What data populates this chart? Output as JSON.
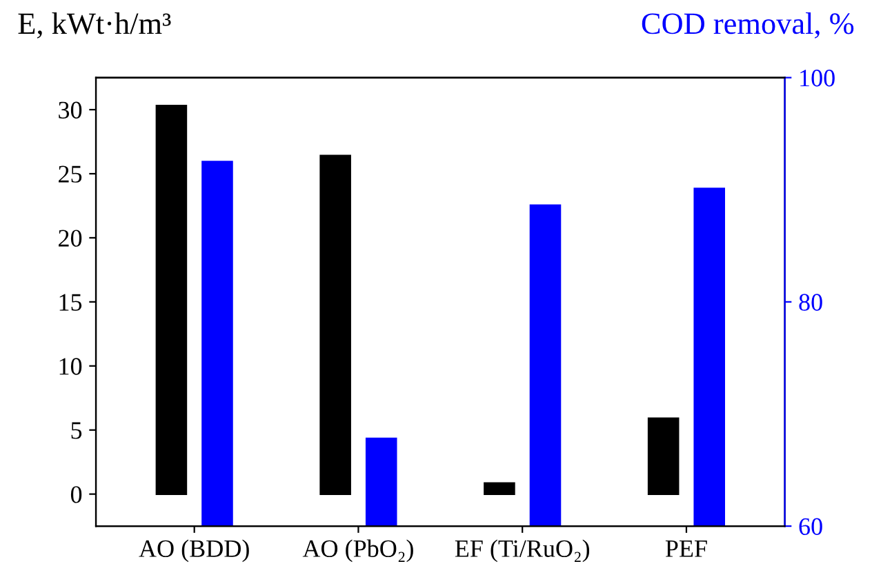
{
  "chart_data": {
    "type": "bar",
    "ylabel": "E, kWt·h/m³",
    "y2label": "COD removal, %",
    "categories": [
      "AO (BDD)",
      "AO (PbO₂)",
      "EF (Ti/RuO₂)",
      "PEF"
    ],
    "series": [
      {
        "color": "#000000",
        "values": [
          30.3,
          26.4,
          0.85,
          5.9
        ]
      },
      {
        "color": "#0000ff",
        "axis": "y2",
        "values": [
          92.5,
          67.8,
          88.6,
          90.1
        ]
      }
    ],
    "ylim": [
      -2.5,
      32.5
    ],
    "yticks": [
      0,
      5,
      10,
      15,
      20,
      25,
      30
    ],
    "y2lim": [
      60,
      100
    ],
    "y2ticks": [
      60,
      80,
      100
    ],
    "grid": false,
    "legend": false
  }
}
